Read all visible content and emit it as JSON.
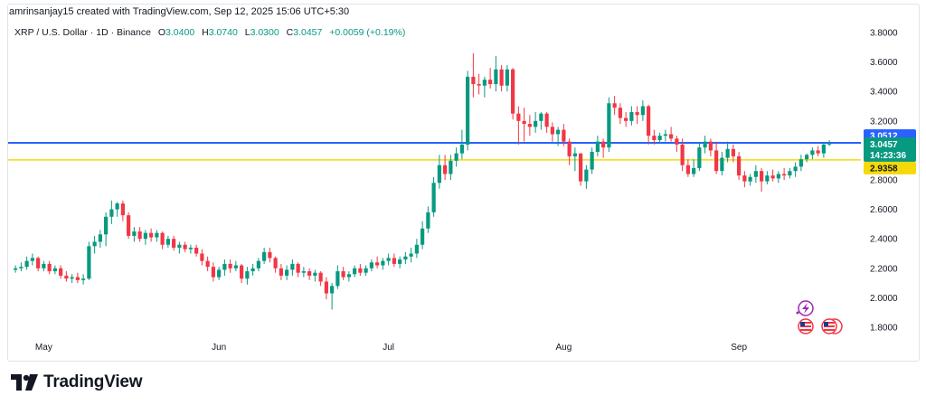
{
  "header": {
    "attribution": "amrinsanjay15 created with TradingView.com, Sep 12, 2025 15:06 UTC+5:30"
  },
  "legend": {
    "symbol": "XRP / U.S. Dollar · 1D · Binance",
    "open_label": "O",
    "open": "3.0400",
    "high_label": "H",
    "high": "3.0740",
    "low_label": "L",
    "low": "3.0300",
    "close_label": "C",
    "close": "3.0457",
    "change": "+0.0059 (+0.19%)"
  },
  "footer": {
    "brand": "TradingView"
  },
  "colors": {
    "up": "#089981",
    "down": "#f23645",
    "blue_line": "#2962ff",
    "yellow_line": "#f5d90a"
  },
  "price_tags": {
    "blue": "3.0512",
    "last": "3.0457",
    "countdown": "14:23:36",
    "yellow": "2.9358"
  },
  "chart_data": {
    "type": "candlestick",
    "symbol": "XRPUSD",
    "interval": "1D",
    "y_ticks": [
      "3.8000",
      "3.6000",
      "3.4000",
      "3.2000",
      "3.0000",
      "2.8000",
      "2.6000",
      "2.4000",
      "2.2000",
      "2.0000",
      "1.8000"
    ],
    "ylim": [
      1.72,
      3.86
    ],
    "x_labels": [
      {
        "label": "May",
        "index": 5
      },
      {
        "label": "Jun",
        "index": 36
      },
      {
        "label": "Jul",
        "index": 66
      },
      {
        "label": "Aug",
        "index": 97
      },
      {
        "label": "Sep",
        "index": 128
      }
    ],
    "horizontal_lines": [
      {
        "price": 3.0512,
        "color": "#2962ff"
      },
      {
        "price": 2.9358,
        "color": "#f5d90a"
      }
    ],
    "candles": [
      [
        2.19,
        2.22,
        2.17,
        2.2
      ],
      [
        2.2,
        2.24,
        2.18,
        2.21
      ],
      [
        2.21,
        2.28,
        2.19,
        2.25
      ],
      [
        2.25,
        2.3,
        2.22,
        2.27
      ],
      [
        2.27,
        2.28,
        2.18,
        2.2
      ],
      [
        2.2,
        2.25,
        2.18,
        2.23
      ],
      [
        2.23,
        2.25,
        2.16,
        2.18
      ],
      [
        2.18,
        2.22,
        2.16,
        2.2
      ],
      [
        2.2,
        2.22,
        2.13,
        2.15
      ],
      [
        2.15,
        2.18,
        2.11,
        2.13
      ],
      [
        2.13,
        2.16,
        2.1,
        2.14
      ],
      [
        2.14,
        2.17,
        2.1,
        2.12
      ],
      [
        2.12,
        2.16,
        2.09,
        2.13
      ],
      [
        2.13,
        2.38,
        2.12,
        2.35
      ],
      [
        2.35,
        2.42,
        2.3,
        2.38
      ],
      [
        2.38,
        2.46,
        2.34,
        2.43
      ],
      [
        2.43,
        2.58,
        2.35,
        2.55
      ],
      [
        2.55,
        2.66,
        2.5,
        2.6
      ],
      [
        2.6,
        2.65,
        2.55,
        2.64
      ],
      [
        2.64,
        2.66,
        2.52,
        2.56
      ],
      [
        2.56,
        2.58,
        2.4,
        2.42
      ],
      [
        2.42,
        2.48,
        2.38,
        2.45
      ],
      [
        2.45,
        2.48,
        2.38,
        2.4
      ],
      [
        2.4,
        2.46,
        2.36,
        2.44
      ],
      [
        2.44,
        2.47,
        2.38,
        2.41
      ],
      [
        2.41,
        2.46,
        2.38,
        2.44
      ],
      [
        2.44,
        2.45,
        2.33,
        2.36
      ],
      [
        2.36,
        2.42,
        2.34,
        2.4
      ],
      [
        2.4,
        2.42,
        2.32,
        2.34
      ],
      [
        2.34,
        2.38,
        2.3,
        2.36
      ],
      [
        2.36,
        2.38,
        2.31,
        2.33
      ],
      [
        2.33,
        2.36,
        2.3,
        2.34
      ],
      [
        2.34,
        2.36,
        2.28,
        2.3
      ],
      [
        2.3,
        2.33,
        2.22,
        2.25
      ],
      [
        2.25,
        2.28,
        2.18,
        2.21
      ],
      [
        2.21,
        2.24,
        2.11,
        2.14
      ],
      [
        2.14,
        2.21,
        2.12,
        2.19
      ],
      [
        2.19,
        2.26,
        2.15,
        2.23
      ],
      [
        2.23,
        2.26,
        2.17,
        2.2
      ],
      [
        2.2,
        2.25,
        2.18,
        2.22
      ],
      [
        2.22,
        2.23,
        2.1,
        2.13
      ],
      [
        2.13,
        2.21,
        2.09,
        2.18
      ],
      [
        2.18,
        2.23,
        2.15,
        2.2
      ],
      [
        2.2,
        2.27,
        2.18,
        2.25
      ],
      [
        2.25,
        2.34,
        2.23,
        2.31
      ],
      [
        2.31,
        2.34,
        2.24,
        2.27
      ],
      [
        2.27,
        2.28,
        2.17,
        2.2
      ],
      [
        2.2,
        2.23,
        2.12,
        2.15
      ],
      [
        2.15,
        2.22,
        2.12,
        2.19
      ],
      [
        2.19,
        2.26,
        2.15,
        2.23
      ],
      [
        2.23,
        2.24,
        2.14,
        2.17
      ],
      [
        2.17,
        2.21,
        2.14,
        2.18
      ],
      [
        2.18,
        2.2,
        2.12,
        2.15
      ],
      [
        2.15,
        2.19,
        2.11,
        2.17
      ],
      [
        2.17,
        2.18,
        2.08,
        2.11
      ],
      [
        2.11,
        2.14,
        1.99,
        2.03
      ],
      [
        2.03,
        2.1,
        1.92,
        2.08
      ],
      [
        2.08,
        2.22,
        2.06,
        2.18
      ],
      [
        2.18,
        2.21,
        2.12,
        2.14
      ],
      [
        2.14,
        2.18,
        2.11,
        2.16
      ],
      [
        2.16,
        2.22,
        2.14,
        2.2
      ],
      [
        2.2,
        2.23,
        2.15,
        2.17
      ],
      [
        2.17,
        2.22,
        2.15,
        2.2
      ],
      [
        2.2,
        2.26,
        2.18,
        2.24
      ],
      [
        2.24,
        2.28,
        2.2,
        2.22
      ],
      [
        2.22,
        2.27,
        2.19,
        2.25
      ],
      [
        2.25,
        2.3,
        2.22,
        2.27
      ],
      [
        2.27,
        2.3,
        2.21,
        2.23
      ],
      [
        2.23,
        2.28,
        2.2,
        2.26
      ],
      [
        2.26,
        2.31,
        2.23,
        2.28
      ],
      [
        2.28,
        2.34,
        2.24,
        2.3
      ],
      [
        2.3,
        2.4,
        2.27,
        2.36
      ],
      [
        2.36,
        2.52,
        2.33,
        2.47
      ],
      [
        2.47,
        2.62,
        2.44,
        2.58
      ],
      [
        2.58,
        2.82,
        2.55,
        2.78
      ],
      [
        2.78,
        2.97,
        2.74,
        2.9
      ],
      [
        2.9,
        2.97,
        2.8,
        2.84
      ],
      [
        2.84,
        2.97,
        2.8,
        2.93
      ],
      [
        2.93,
        3.02,
        2.89,
        2.98
      ],
      [
        2.98,
        3.14,
        2.94,
        3.04
      ],
      [
        3.04,
        3.54,
        3.0,
        3.5
      ],
      [
        3.5,
        3.66,
        3.36,
        3.45
      ],
      [
        3.45,
        3.52,
        3.38,
        3.44
      ],
      [
        3.44,
        3.5,
        3.36,
        3.48
      ],
      [
        3.48,
        3.56,
        3.42,
        3.45
      ],
      [
        3.45,
        3.64,
        3.4,
        3.55
      ],
      [
        3.55,
        3.58,
        3.4,
        3.44
      ],
      [
        3.44,
        3.58,
        3.4,
        3.55
      ],
      [
        3.55,
        3.56,
        3.21,
        3.25
      ],
      [
        3.25,
        3.3,
        3.04,
        3.2
      ],
      [
        3.2,
        3.29,
        3.06,
        3.18
      ],
      [
        3.18,
        3.24,
        3.1,
        3.16
      ],
      [
        3.16,
        3.26,
        3.12,
        3.2
      ],
      [
        3.2,
        3.26,
        3.14,
        3.25
      ],
      [
        3.25,
        3.26,
        3.12,
        3.16
      ],
      [
        3.16,
        3.19,
        3.06,
        3.11
      ],
      [
        3.11,
        3.16,
        3.03,
        3.14
      ],
      [
        3.14,
        3.18,
        3.03,
        3.06
      ],
      [
        3.06,
        3.08,
        2.9,
        2.96
      ],
      [
        2.96,
        3.02,
        2.86,
        2.98
      ],
      [
        2.98,
        2.98,
        2.76,
        2.79
      ],
      [
        2.79,
        2.9,
        2.74,
        2.87
      ],
      [
        2.87,
        3.02,
        2.84,
        2.99
      ],
      [
        2.99,
        3.1,
        2.96,
        3.06
      ],
      [
        3.06,
        3.08,
        2.95,
        3.02
      ],
      [
        3.02,
        3.36,
        2.99,
        3.32
      ],
      [
        3.32,
        3.37,
        3.24,
        3.29
      ],
      [
        3.29,
        3.32,
        3.18,
        3.22
      ],
      [
        3.22,
        3.26,
        3.16,
        3.2
      ],
      [
        3.2,
        3.3,
        3.17,
        3.26
      ],
      [
        3.26,
        3.3,
        3.18,
        3.24
      ],
      [
        3.24,
        3.34,
        3.2,
        3.3
      ],
      [
        3.3,
        3.31,
        3.04,
        3.1
      ],
      [
        3.1,
        3.14,
        3.04,
        3.07
      ],
      [
        3.07,
        3.12,
        3.05,
        3.1
      ],
      [
        3.1,
        3.14,
        3.06,
        3.11
      ],
      [
        3.11,
        3.16,
        3.06,
        3.08
      ],
      [
        3.08,
        3.1,
        2.99,
        3.04
      ],
      [
        3.04,
        3.08,
        2.86,
        2.9
      ],
      [
        2.9,
        2.94,
        2.82,
        2.84
      ],
      [
        2.84,
        2.94,
        2.82,
        2.88
      ],
      [
        2.88,
        3.05,
        2.86,
        3.02
      ],
      [
        3.02,
        3.1,
        2.98,
        3.06
      ],
      [
        3.06,
        3.08,
        2.96,
        3.0
      ],
      [
        3.0,
        3.06,
        2.84,
        2.86
      ],
      [
        2.86,
        2.99,
        2.83,
        2.95
      ],
      [
        2.95,
        3.06,
        2.92,
        3.01
      ],
      [
        3.01,
        3.04,
        2.92,
        2.96
      ],
      [
        2.96,
        2.99,
        2.8,
        2.83
      ],
      [
        2.83,
        2.86,
        2.75,
        2.79
      ],
      [
        2.79,
        2.84,
        2.76,
        2.82
      ],
      [
        2.82,
        2.9,
        2.78,
        2.86
      ],
      [
        2.86,
        2.88,
        2.72,
        2.79
      ],
      [
        2.79,
        2.86,
        2.77,
        2.83
      ],
      [
        2.83,
        2.87,
        2.79,
        2.81
      ],
      [
        2.81,
        2.86,
        2.78,
        2.84
      ],
      [
        2.84,
        2.88,
        2.8,
        2.83
      ],
      [
        2.83,
        2.88,
        2.81,
        2.86
      ],
      [
        2.86,
        2.92,
        2.82,
        2.89
      ],
      [
        2.89,
        2.97,
        2.86,
        2.94
      ],
      [
        2.94,
        2.98,
        2.92,
        2.97
      ],
      [
        2.97,
        3.02,
        2.94,
        3.0
      ],
      [
        3.0,
        3.03,
        2.96,
        2.98
      ],
      [
        2.98,
        3.05,
        2.95,
        3.04
      ],
      [
        3.04,
        3.07,
        3.03,
        3.05
      ]
    ]
  }
}
